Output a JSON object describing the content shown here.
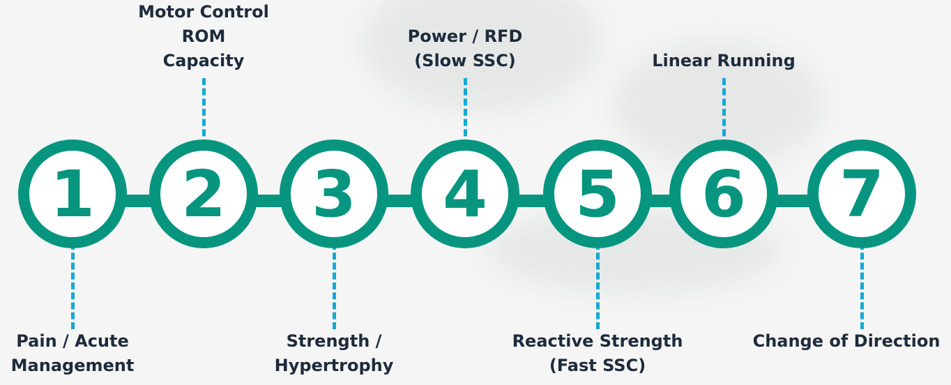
{
  "stages": [
    {
      "number": "1",
      "label": "Pain / Acute\nManagement",
      "label_side": "below"
    },
    {
      "number": "2",
      "label": "Motor Control\nROM\nCapacity",
      "label_side": "above"
    },
    {
      "number": "3",
      "label": "Strength /\nHypertrophy",
      "label_side": "below"
    },
    {
      "number": "4",
      "label": "Power / RFD\n(Slow SSC)",
      "label_side": "above"
    },
    {
      "number": "5",
      "label": "Reactive Strength\n(Fast SSC)",
      "label_side": "below"
    },
    {
      "number": "6",
      "label": "Linear Running",
      "label_side": "above"
    },
    {
      "number": "7",
      "label": "Change of Direction",
      "label_side": "below"
    }
  ],
  "colors": {
    "accent": "#079580",
    "connector_dash": "#17a8d4",
    "label_text": "#1e2b3c",
    "circle_fill": "#ffffff",
    "background": "#f4f5f4"
  }
}
